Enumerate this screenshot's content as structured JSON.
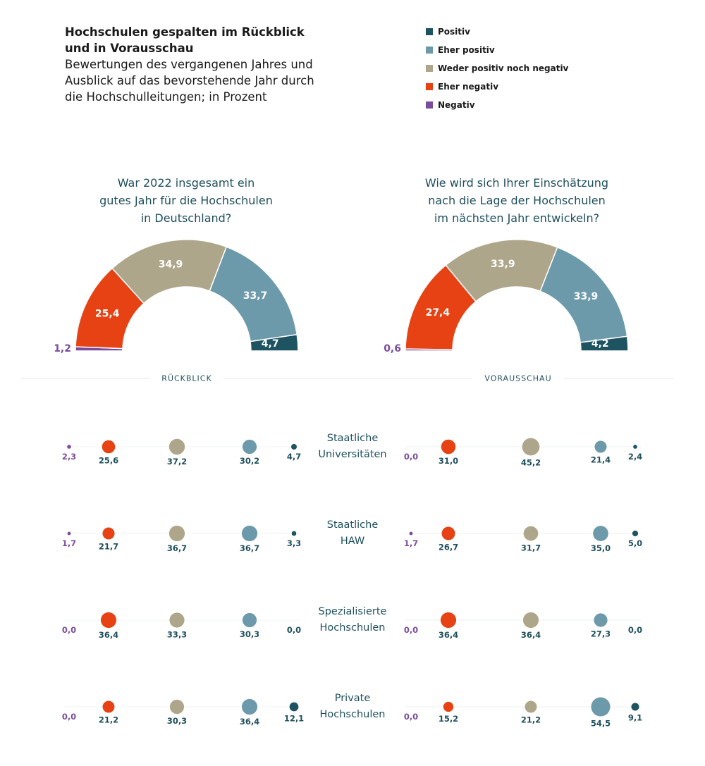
{
  "header": {
    "title_lines": [
      "Hochschulen gespalten im Rückblick",
      "und in Vorausschau"
    ],
    "subtitle_lines": [
      "Bewertungen des vergangenen Jahres und",
      "Ausblick auf das bevorstehende Jahr durch",
      "die Hochschulleitungen; in Prozent"
    ]
  },
  "legend": [
    {
      "label": "Positiv",
      "color": "#1e5362"
    },
    {
      "label": "Eher positiv",
      "color": "#6d9aab"
    },
    {
      "label": "Weder positiv noch negativ",
      "color": "#aea68b"
    },
    {
      "label": "Eher negativ",
      "color": "#e64213"
    },
    {
      "label": "Negativ",
      "color": "#7b4c9b"
    }
  ],
  "chart_data": [
    {
      "type": "pie",
      "variant": "half-donut",
      "title_lines": [
        "War 2022 insgesamt ein",
        "gutes Jahr für die Hochschulen",
        "in Deutschland?"
      ],
      "categories": [
        "Negativ",
        "Eher negativ",
        "Weder positiv noch negativ",
        "Eher positiv",
        "Positiv"
      ],
      "values": [
        1.2,
        25.4,
        34.9,
        33.7,
        4.7
      ],
      "labels": [
        "1,2",
        "25,4",
        "34,9",
        "33,7",
        "4,7"
      ]
    },
    {
      "type": "pie",
      "variant": "half-donut",
      "title_lines": [
        "Wie wird sich Ihrer Einschätzung",
        "nach die Lage der Hochschulen",
        "im nächsten Jahr entwickeln?"
      ],
      "categories": [
        "Negativ",
        "Eher negativ",
        "Weder positiv noch negativ",
        "Eher positiv",
        "Positiv"
      ],
      "values": [
        0.6,
        27.4,
        33.9,
        33.9,
        4.2
      ],
      "labels": [
        "0,6",
        "27,4",
        "33,9",
        "33,9",
        "4,2"
      ]
    },
    {
      "type": "bubble",
      "section_labels": [
        "RÜCKBLICK",
        "VORAUSSCHAU"
      ],
      "categories": [
        "Negativ",
        "Eher negativ",
        "Weder positiv noch negativ",
        "Eher positiv",
        "Positiv"
      ],
      "rows": [
        {
          "label_lines": [
            "Staatliche",
            "Universitäten"
          ],
          "rueckblick": {
            "values": [
              2.3,
              25.6,
              37.2,
              30.2,
              4.7
            ],
            "labels": [
              "2,3",
              "25,6",
              "37,2",
              "30,2",
              "4,7"
            ]
          },
          "vorausschau": {
            "values": [
              0.0,
              31.0,
              45.2,
              21.4,
              2.4
            ],
            "labels": [
              "0,0",
              "31,0",
              "45,2",
              "21,4",
              "2,4"
            ]
          }
        },
        {
          "label_lines": [
            "Staatliche",
            "HAW"
          ],
          "rueckblick": {
            "values": [
              1.7,
              21.7,
              36.7,
              36.7,
              3.3
            ],
            "labels": [
              "1,7",
              "21,7",
              "36,7",
              "36,7",
              "3,3"
            ]
          },
          "vorausschau": {
            "values": [
              1.7,
              26.7,
              31.7,
              35.0,
              5.0
            ],
            "labels": [
              "1,7",
              "26,7",
              "31,7",
              "35,0",
              "5,0"
            ]
          }
        },
        {
          "label_lines": [
            "Spezialisierte",
            "Hochschulen"
          ],
          "rueckblick": {
            "values": [
              0.0,
              36.4,
              33.3,
              30.3,
              0.0
            ],
            "labels": [
              "0,0",
              "36,4",
              "33,3",
              "30,3",
              "0,0"
            ]
          },
          "vorausschau": {
            "values": [
              0.0,
              36.4,
              36.4,
              27.3,
              0.0
            ],
            "labels": [
              "0,0",
              "36,4",
              "36,4",
              "27,3",
              "0,0"
            ]
          }
        },
        {
          "label_lines": [
            "Private",
            "Hochschulen"
          ],
          "rueckblick": {
            "values": [
              0.0,
              21.2,
              30.3,
              36.4,
              12.1
            ],
            "labels": [
              "0,0",
              "21,2",
              "30,3",
              "36,4",
              "12,1"
            ]
          },
          "vorausschau": {
            "values": [
              0.0,
              15.2,
              21.2,
              54.5,
              9.1
            ],
            "labels": [
              "0,0",
              "15,2",
              "21,2",
              "54,5",
              "9,1"
            ]
          }
        }
      ]
    }
  ]
}
